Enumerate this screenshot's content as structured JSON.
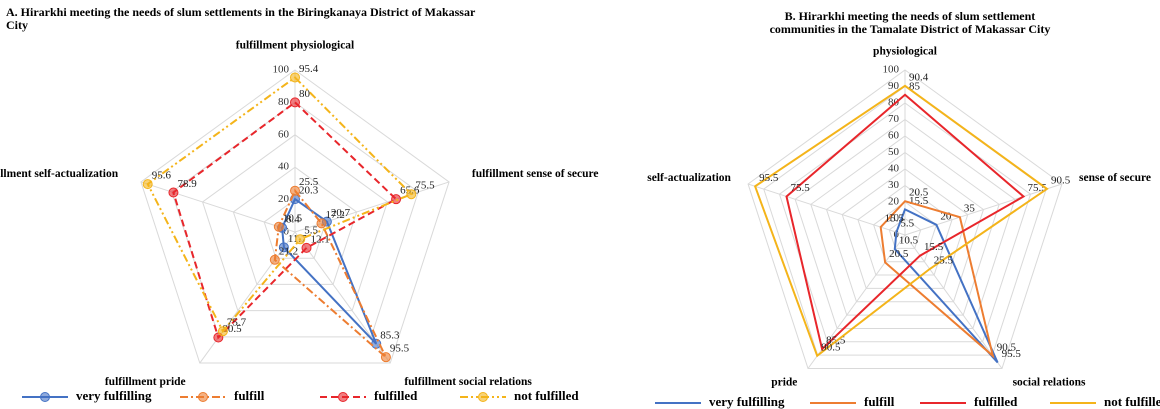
{
  "chart_data": [
    {
      "type": "radar",
      "title": "A. Hirarkhi meeting the needs of slum settlements in the Biringkanaya District of Makassar City",
      "categories": [
        "fulfillment physiological",
        "fulfillment sense of secure",
        "fulfillment social relations",
        "fulfillment pride",
        "fulfillment self-actualization"
      ],
      "rlim": [
        0,
        100
      ],
      "rticks": [
        0,
        20,
        40,
        60,
        80,
        100
      ],
      "markers": true,
      "grid": true,
      "series": [
        {
          "name": "very fulfilling",
          "color": "#4472c4",
          "line_style": "solid",
          "values": [
            20.3,
            20.7,
            85.3,
            11.7,
            8.4
          ]
        },
        {
          "name": "fulfill",
          "color": "#ed7d31",
          "line_style": "dashdot",
          "values": [
            25.5,
            17.2,
            95.5,
            21.2,
            10.5
          ]
        },
        {
          "name": "fulfilled",
          "color": "#e8262b",
          "line_style": "dashed",
          "values": [
            80,
            65.6,
            12.1,
            80.5,
            78.9
          ]
        },
        {
          "name": "not fulfilled",
          "color": "#f4b41a",
          "line_style": "dashdotdot",
          "values": [
            95.4,
            75.5,
            5.5,
            75.7,
            95.6
          ]
        }
      ]
    },
    {
      "type": "radar",
      "title": "B. Hirarkhi meeting the needs of slum settlement communities in the Tamalate District of Makassar City",
      "categories": [
        "physiological",
        "sense of secure",
        "social relations",
        "pride",
        "self-actualization"
      ],
      "rlim": [
        0,
        100
      ],
      "rticks": [
        0,
        10,
        20,
        30,
        40,
        50,
        60,
        70,
        80,
        90,
        100
      ],
      "markers": false,
      "grid": true,
      "series": [
        {
          "name": "very fulfilling",
          "color": "#4472c4",
          "line_style": "solid",
          "values": [
            15.5,
            20,
            95.5,
            10.5,
            5.5
          ]
        },
        {
          "name": "fulfill",
          "color": "#ed7d31",
          "line_style": "solid",
          "values": [
            20.5,
            35,
            90.5,
            20.5,
            15.5
          ]
        },
        {
          "name": "fulfilled",
          "color": "#e8262b",
          "line_style": "solid",
          "values": [
            85,
            75.5,
            15.5,
            85.5,
            75.5
          ]
        },
        {
          "name": "not fulfilled",
          "color": "#f4b41a",
          "line_style": "solid",
          "values": [
            90.4,
            90.5,
            25.5,
            90.5,
            95.5
          ]
        }
      ]
    }
  ]
}
